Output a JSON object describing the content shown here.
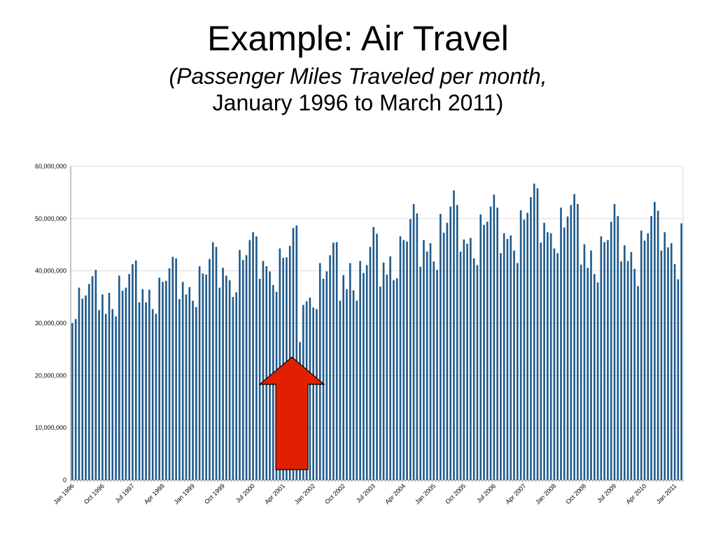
{
  "slide": {
    "title": "Example: Air Travel",
    "subtitle_line1": "(Passenger Miles Traveled per month,",
    "subtitle_line2": "January 1996 to March 2011)"
  },
  "colors": {
    "bar": "#1F5A8C",
    "arrow_fill": "#E02000",
    "arrow_stroke": "#000000",
    "grid": "#D9D9D9"
  },
  "annotation": {
    "shape": "up-arrow",
    "points_at": "Sep 2001"
  },
  "chart_data": {
    "type": "bar",
    "title": "",
    "xlabel": "",
    "ylabel": "",
    "ylim": [
      0,
      60000000
    ],
    "yticks": [
      0,
      10000000,
      20000000,
      30000000,
      40000000,
      50000000,
      60000000
    ],
    "ytick_labels": [
      "0",
      "10,000,000",
      "20,000,000",
      "30,000,000",
      "40,000,000",
      "50,000,000",
      "60,000,000"
    ],
    "grid": true,
    "legend": "none",
    "x_start": "Jan 1996",
    "x_tick_labels": [
      "Jan 1996",
      "Oct 1996",
      "Jul 1997",
      "Apr 1998",
      "Jan 1999",
      "Oct 1999",
      "Jul 2000",
      "Apr 2001",
      "Jan 2002",
      "Oct 2002",
      "Jul 2003",
      "Apr 2004",
      "Jan 2005",
      "Oct 2005",
      "Jul 2006",
      "Apr 2007",
      "Jan 2008",
      "Oct 2008",
      "Jul 2009",
      "Apr 2010",
      "Jan 2011"
    ],
    "values": [
      30000000,
      30800000,
      36800000,
      34700000,
      35300000,
      37500000,
      39000000,
      40200000,
      32500000,
      35500000,
      31800000,
      35800000,
      32700000,
      31300000,
      39100000,
      36200000,
      36800000,
      39400000,
      41300000,
      42000000,
      34000000,
      36500000,
      34000000,
      36400000,
      32700000,
      31800000,
      38700000,
      37900000,
      38100000,
      40500000,
      42700000,
      42400000,
      34600000,
      37900000,
      35500000,
      36900000,
      34300000,
      33100000,
      40900000,
      39500000,
      39300000,
      42300000,
      45500000,
      44600000,
      36800000,
      40600000,
      39100000,
      38200000,
      35000000,
      35900000,
      44000000,
      42100000,
      43000000,
      45900000,
      47400000,
      46600000,
      38500000,
      41900000,
      40900000,
      39900000,
      37300000,
      36000000,
      44300000,
      42500000,
      42600000,
      44800000,
      48200000,
      48700000,
      26400000,
      33500000,
      34200000,
      34900000,
      33000000,
      32700000,
      41500000,
      38500000,
      39900000,
      43000000,
      45400000,
      45500000,
      34300000,
      39200000,
      36500000,
      41500000,
      36300000,
      34300000,
      41900000,
      39600000,
      41100000,
      44600000,
      48400000,
      47100000,
      37000000,
      41600000,
      39300000,
      42800000,
      38200000,
      38600000,
      46600000,
      45900000,
      45600000,
      49900000,
      52800000,
      51000000,
      40800000,
      45900000,
      43700000,
      45300000,
      41800000,
      40200000,
      50900000,
      47300000,
      49200000,
      52300000,
      55400000,
      52600000,
      43700000,
      46000000,
      45200000,
      46300000,
      42400000,
      41100000,
      50800000,
      48800000,
      49400000,
      52300000,
      54600000,
      52100000,
      43400000,
      47200000,
      46100000,
      46800000,
      43900000,
      41500000,
      51600000,
      49800000,
      51100000,
      54100000,
      56700000,
      55800000,
      45400000,
      49200000,
      47400000,
      47200000,
      44300000,
      43400000,
      52100000,
      48300000,
      50400000,
      52600000,
      54700000,
      52800000,
      41200000,
      45100000,
      40600000,
      43900000,
      39400000,
      37800000,
      46600000,
      45500000,
      45900000,
      49400000,
      52800000,
      50500000,
      41800000,
      44900000,
      41900000,
      43600000,
      40400000,
      37100000,
      47700000,
      45800000,
      47200000,
      50500000,
      53200000,
      51500000,
      43900000,
      47400000,
      44500000,
      45300000,
      41300000,
      38400000,
      49100000
    ]
  }
}
